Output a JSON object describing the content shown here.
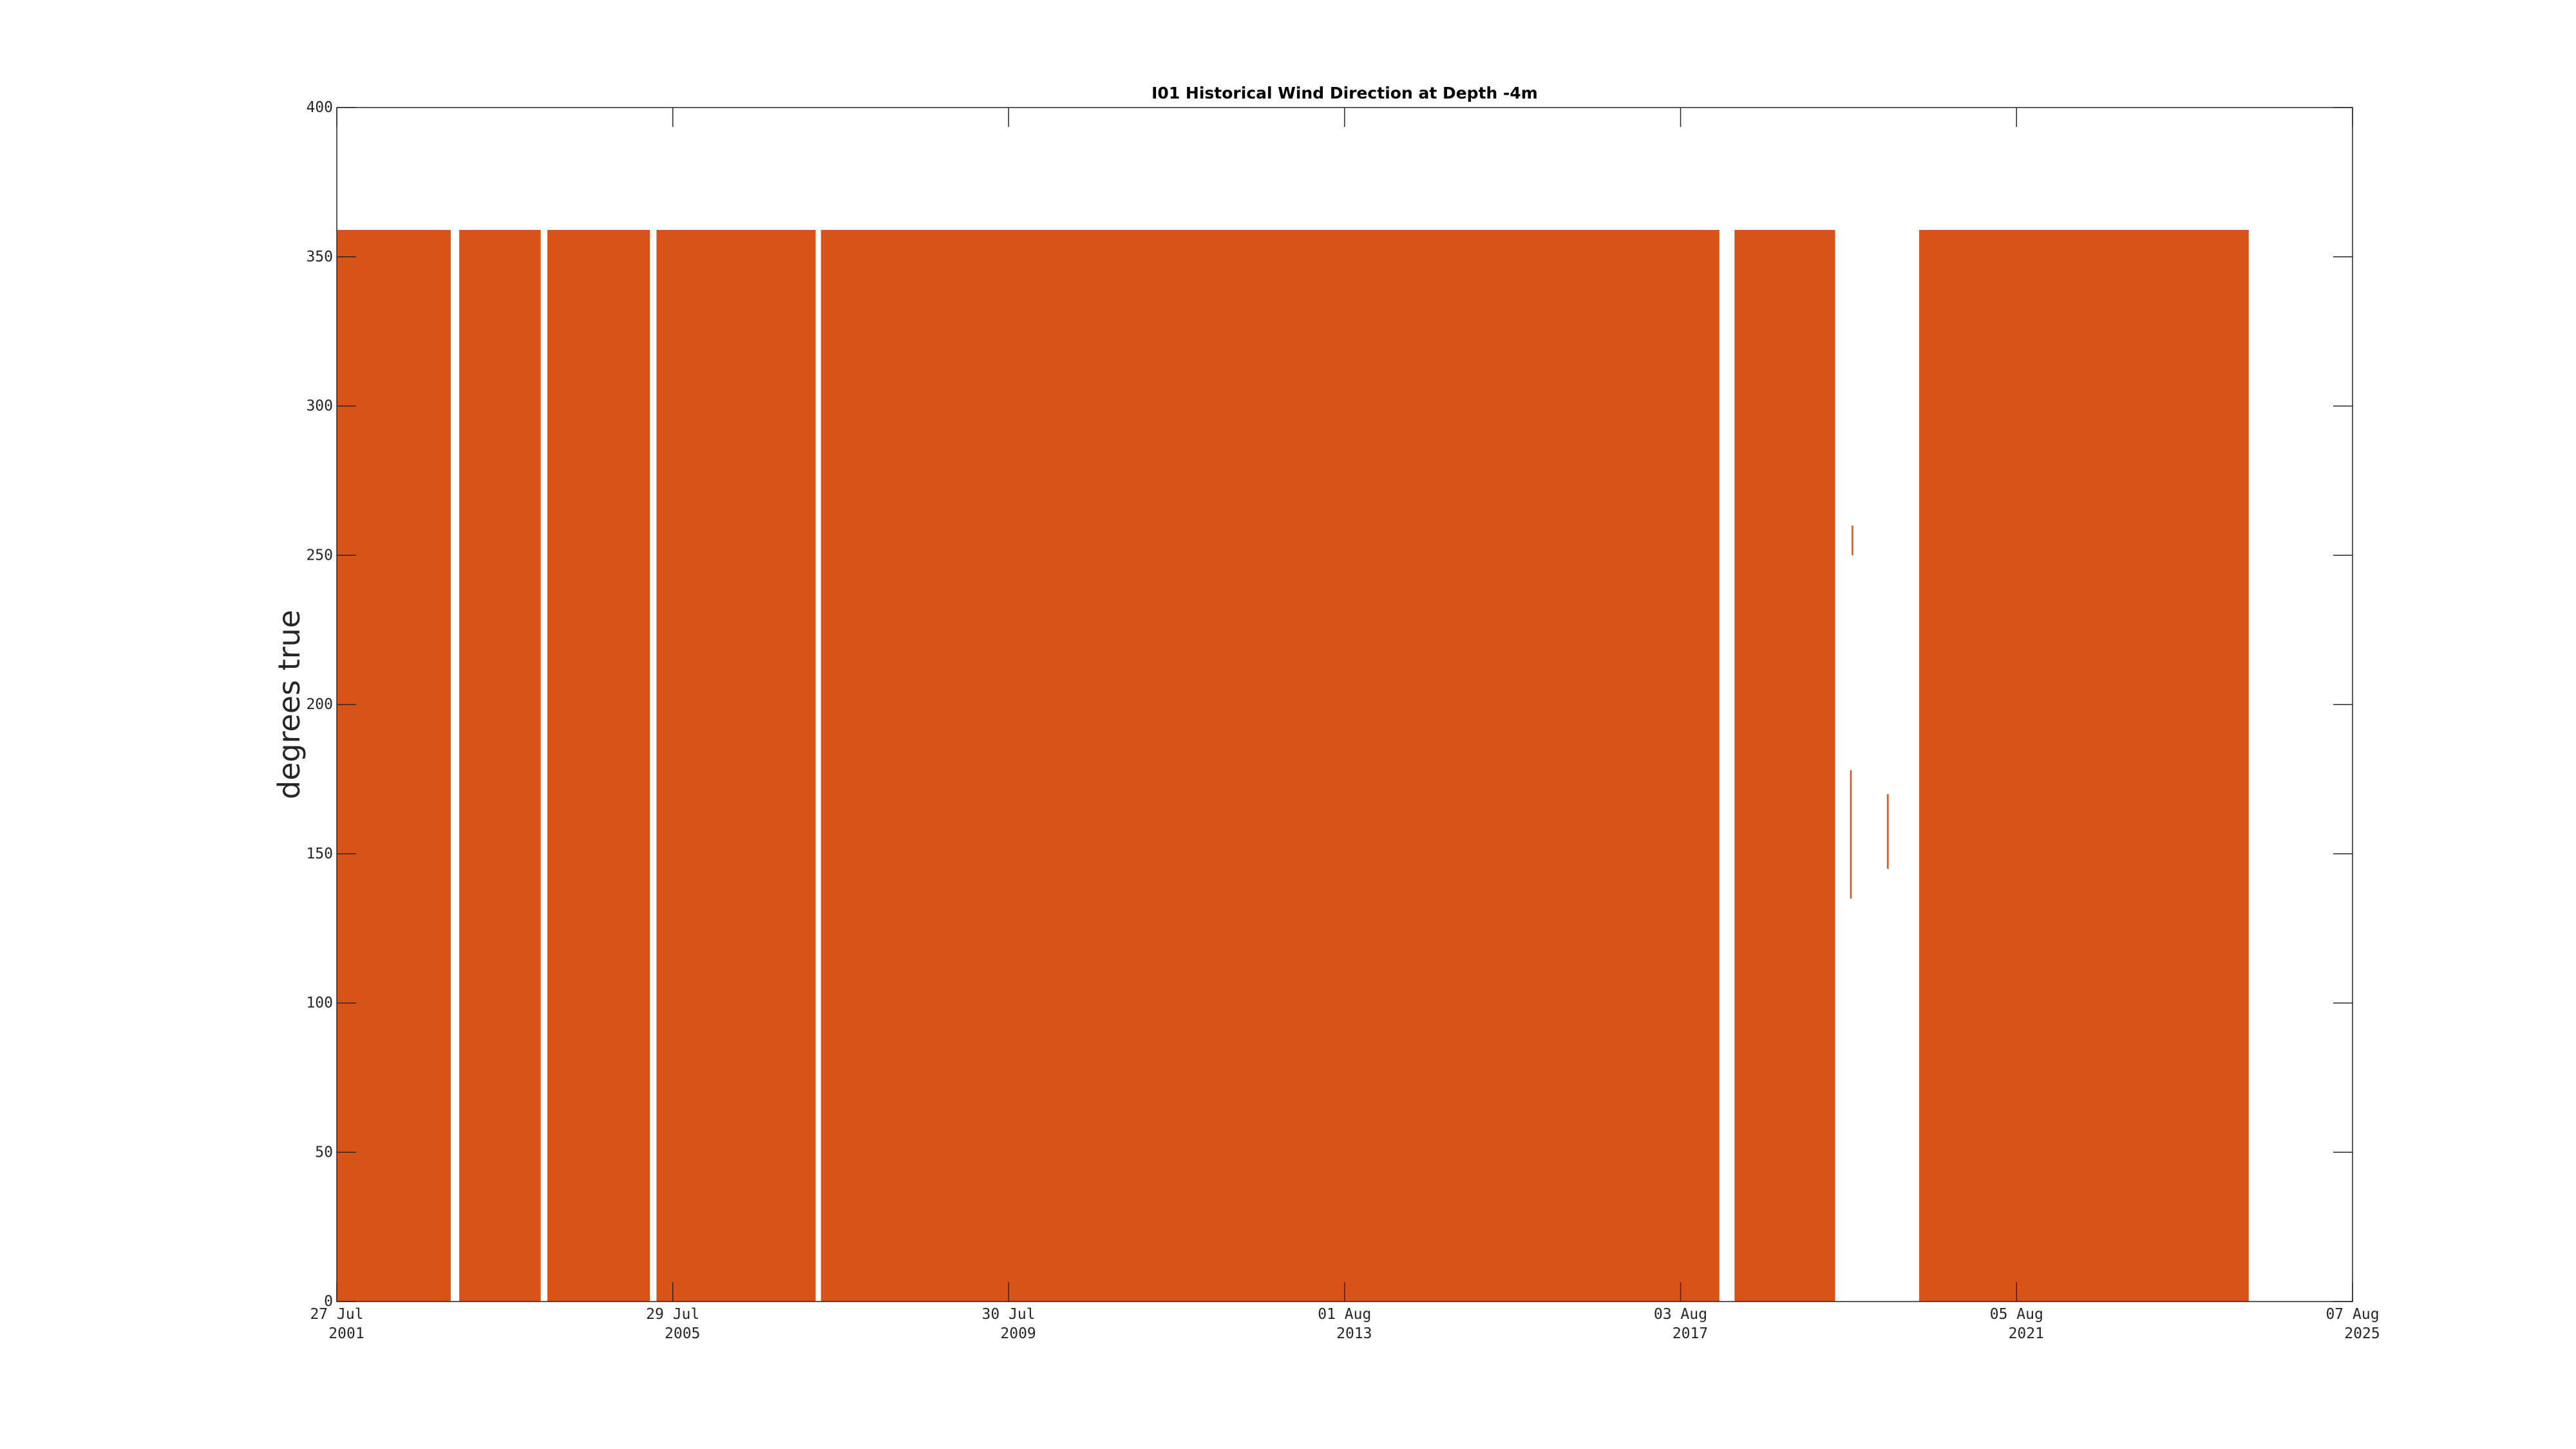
{
  "chart_data": {
    "type": "range",
    "title": "I01 Historical Wind Direction at Depth -4m",
    "y_label": "degrees true",
    "color": "#d95319",
    "start": [
      "2001-07-27",
      "2003-01-11",
      "2004-01-30",
      "2005-05-19",
      "2007-05-05",
      "2018-03-26",
      "2019-08-11",
      "2019-08-18",
      "2020-01-19",
      "2020-06-07"
    ],
    "end": [
      "2002-12-05",
      "2004-01-01",
      "2005-04-20",
      "2007-04-12",
      "2018-01-19",
      "2019-06-07",
      "2019-08-11",
      "2019-08-18",
      "2020-01-19",
      "2024-05-12"
    ],
    "low": [
      0,
      0,
      0,
      0,
      0,
      0,
      135,
      250,
      145,
      0
    ],
    "high": [
      359,
      359,
      359,
      359,
      359,
      359,
      178,
      260,
      170,
      359
    ],
    "xlim": [
      "2001-07-27",
      "2025-08-07"
    ],
    "xticks": [
      {
        "value": "2001-07-27",
        "label": "27 Jul 2001"
      },
      {
        "value": "2005-07-29",
        "label": "29 Jul 2005"
      },
      {
        "value": "2009-07-30",
        "label": "30 Jul 2009"
      },
      {
        "value": "2013-08-01",
        "label": "01 Aug 2013"
      },
      {
        "value": "2017-08-03",
        "label": "03 Aug 2017"
      },
      {
        "value": "2021-08-05",
        "label": "05 Aug 2021"
      },
      {
        "value": "2025-08-07",
        "label": "07 Aug 2025"
      }
    ],
    "ylim": [
      0,
      400
    ],
    "yticks": [
      0,
      50,
      100,
      150,
      200,
      250,
      300,
      350,
      400
    ],
    "grid": false
  }
}
